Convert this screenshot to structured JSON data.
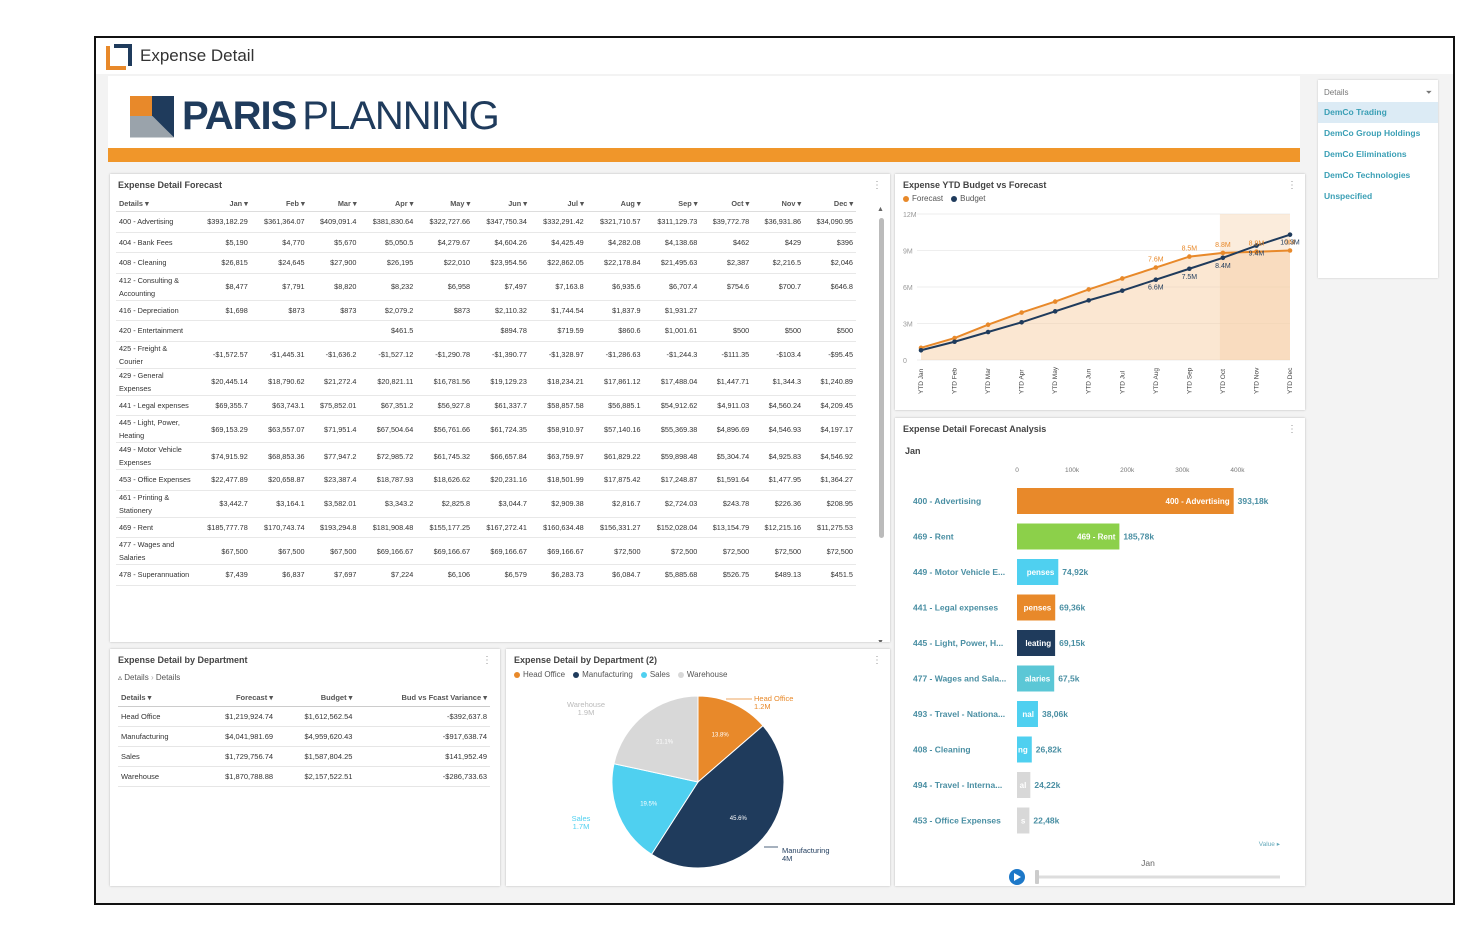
{
  "app": {
    "title": "Expense Detail"
  },
  "brand": {
    "bold": "PARIS",
    "light": "PLANNING"
  },
  "colors": {
    "orange": "#e8892a",
    "navy": "#1f3b5c",
    "cyan": "#4fd0f0",
    "lightgray": "#d8d8d8",
    "green": "#8cd04a",
    "teal": "#5bc7d6"
  },
  "forecast_table": {
    "title": "Expense Detail Forecast",
    "columns": [
      "Details",
      "Jan",
      "Feb",
      "Mar",
      "Apr",
      "May",
      "Jun",
      "Jul",
      "Aug",
      "Sep",
      "Oct",
      "Nov",
      "Dec"
    ],
    "rows": [
      [
        "400 - Advertising",
        "$393,182.29",
        "$361,364.07",
        "$409,091.4",
        "$381,830.64",
        "$322,727.66",
        "$347,750.34",
        "$332,291.42",
        "$321,710.57",
        "$311,129.73",
        "$39,772.78",
        "$36,931.86",
        "$34,090.95"
      ],
      [
        "404 - Bank Fees",
        "$5,190",
        "$4,770",
        "$5,670",
        "$5,050.5",
        "$4,279.67",
        "$4,604.26",
        "$4,425.49",
        "$4,282.08",
        "$4,138.68",
        "$462",
        "$429",
        "$396"
      ],
      [
        "408 - Cleaning",
        "$26,815",
        "$24,645",
        "$27,900",
        "$26,195",
        "$22,010",
        "$23,954.56",
        "$22,862.05",
        "$22,178.84",
        "$21,495.63",
        "$2,387",
        "$2,216.5",
        "$2,046"
      ],
      [
        "412 - Consulting & Accounting",
        "$8,477",
        "$7,791",
        "$8,820",
        "$8,232",
        "$6,958",
        "$7,497",
        "$7,163.8",
        "$6,935.6",
        "$6,707.4",
        "$754.6",
        "$700.7",
        "$646.8"
      ],
      [
        "416 - Depreciation",
        "$1,698",
        "$873",
        "$873",
        "$2,079.2",
        "$873",
        "$2,110.32",
        "$1,744.54",
        "$1,837.9",
        "$1,931.27",
        "",
        "",
        ""
      ],
      [
        "420 - Entertainment",
        "",
        "",
        "",
        "$461.5",
        "",
        "$894.78",
        "$719.59",
        "$860.6",
        "$1,001.61",
        "$500",
        "$500",
        "$500"
      ],
      [
        "425 - Freight & Courier",
        "-$1,572.57",
        "-$1,445.31",
        "-$1,636.2",
        "-$1,527.12",
        "-$1,290.78",
        "-$1,390.77",
        "-$1,328.97",
        "-$1,286.63",
        "-$1,244.3",
        "-$111.35",
        "-$103.4",
        "-$95.45"
      ],
      [
        "429 - General Expenses",
        "$20,445.14",
        "$18,790.62",
        "$21,272.4",
        "$20,821.11",
        "$16,781.56",
        "$19,129.23",
        "$18,234.21",
        "$17,861.12",
        "$17,488.04",
        "$1,447.71",
        "$1,344.3",
        "$1,240.89"
      ],
      [
        "441 - Legal expenses",
        "$69,355.7",
        "$63,743.1",
        "$75,852.01",
        "$67,351.2",
        "$56,927.8",
        "$61,337.7",
        "$58,857.58",
        "$56,885.1",
        "$54,912.62",
        "$4,911.03",
        "$4,560.24",
        "$4,209.45"
      ],
      [
        "445 - Light, Power, Heating",
        "$69,153.29",
        "$63,557.07",
        "$71,951.4",
        "$67,504.64",
        "$56,761.66",
        "$61,724.35",
        "$58,910.97",
        "$57,140.16",
        "$55,369.38",
        "$4,896.69",
        "$4,546.93",
        "$4,197.17"
      ],
      [
        "449 - Motor Vehicle Expenses",
        "$74,915.92",
        "$68,853.36",
        "$77,947.2",
        "$72,985.72",
        "$61,745.32",
        "$66,657.84",
        "$63,759.97",
        "$61,829.22",
        "$59,898.48",
        "$5,304.74",
        "$4,925.83",
        "$4,546.92"
      ],
      [
        "453 - Office Expenses",
        "$22,477.89",
        "$20,658.87",
        "$23,387.4",
        "$18,787.93",
        "$18,626.62",
        "$20,231.16",
        "$18,501.99",
        "$17,875.42",
        "$17,248.87",
        "$1,591.64",
        "$1,477.95",
        "$1,364.27"
      ],
      [
        "461 - Printing & Stationery",
        "$3,442.7",
        "$3,164.1",
        "$3,582.01",
        "$3,343.2",
        "$2,825.8",
        "$3,044.7",
        "$2,909.38",
        "$2,816.7",
        "$2,724.03",
        "$243.78",
        "$226.36",
        "$208.95"
      ],
      [
        "469 - Rent",
        "$185,777.78",
        "$170,743.74",
        "$193,294.8",
        "$181,908.48",
        "$155,177.25",
        "$167,272.41",
        "$160,634.48",
        "$156,331.27",
        "$152,028.04",
        "$13,154.79",
        "$12,215.16",
        "$11,275.53"
      ],
      [
        "477 - Wages and Salaries",
        "$67,500",
        "$67,500",
        "$67,500",
        "$69,166.67",
        "$69,166.67",
        "$69,166.67",
        "$69,166.67",
        "$72,500",
        "$72,500",
        "$72,500",
        "$72,500",
        "$72,500"
      ],
      [
        "478 - Superannuation",
        "$7,439",
        "$6,837",
        "$7,697",
        "$7,224",
        "$6,106",
        "$6,579",
        "$6,283.73",
        "$6,084.7",
        "$5,885.68",
        "$526.75",
        "$489.13",
        "$451.5"
      ]
    ],
    "tall_rows": [
      3,
      6,
      7,
      9,
      10,
      12,
      14
    ]
  },
  "ytd_chart": {
    "title": "Expense YTD Budget vs Forecast",
    "legend": [
      "Forecast",
      "Budget"
    ]
  },
  "chart_data": [
    {
      "type": "line",
      "title": "Expense YTD Budget vs Forecast",
      "categories": [
        "YTD Jan",
        "YTD Feb",
        "YTD Mar",
        "YTD Apr",
        "YTD May",
        "YTD Jun",
        "YTD Jul",
        "YTD Aug",
        "YTD Sep",
        "YTD Oct",
        "YTD Nov",
        "YTD Dec"
      ],
      "yticks": [
        "0",
        "3M",
        "6M",
        "9M",
        "12M"
      ],
      "ylim": [
        0,
        12
      ],
      "series": [
        {
          "name": "Forecast",
          "color": "#e8892a",
          "values": [
            1.0,
            1.8,
            2.9,
            3.9,
            4.8,
            5.8,
            6.7,
            7.6,
            8.5,
            8.8,
            8.9,
            9.0
          ]
        },
        {
          "name": "Budget",
          "color": "#1f3b5c",
          "values": [
            0.8,
            1.5,
            2.3,
            3.1,
            4.0,
            4.9,
            5.7,
            6.6,
            7.5,
            8.4,
            9.4,
            10.3
          ]
        }
      ],
      "data_labels": [
        {
          "i": 7,
          "text": "7.6M",
          "series": "Forecast"
        },
        {
          "i": 7,
          "text": "6.6M",
          "series": "Budget"
        },
        {
          "i": 8,
          "text": "8.5M",
          "series": "Forecast"
        },
        {
          "i": 8,
          "text": "7.5M",
          "series": "Budget"
        },
        {
          "i": 9,
          "text": "8.8M",
          "series": "Forecast"
        },
        {
          "i": 9,
          "text": "8.4M",
          "series": "Budget"
        },
        {
          "i": 10,
          "text": "8.9M",
          "series": "Forecast"
        },
        {
          "i": 10,
          "text": "9.4M",
          "series": "Budget"
        },
        {
          "i": 11,
          "text": "9M",
          "series": "Forecast"
        },
        {
          "i": 11,
          "text": "10.3M",
          "series": "Budget"
        }
      ],
      "legend_position": "top-left"
    },
    {
      "type": "pie",
      "title": "Expense Detail by Department (2)",
      "legend_position": "top-left",
      "slices": [
        {
          "name": "Head Office",
          "value": 1.2,
          "label": "1.2M",
          "percent": "13.8%",
          "color": "#e8892a"
        },
        {
          "name": "Manufacturing",
          "value": 4,
          "label": "4M",
          "percent": "45.6%",
          "color": "#1f3b5c"
        },
        {
          "name": "Sales",
          "value": 1.7,
          "label": "1.7M",
          "percent": "19.5%",
          "color": "#4fd0f0"
        },
        {
          "name": "Warehouse",
          "value": 1.9,
          "label": "1.9M",
          "percent": "21.1%",
          "color": "#d8d8d8"
        }
      ]
    },
    {
      "type": "bar",
      "title": "Expense Detail Forecast Analysis",
      "subtitle": "Jan",
      "xticks": [
        "0",
        "100k",
        "200k",
        "300k",
        "400k"
      ],
      "xlim": [
        0,
        450
      ],
      "bars": [
        {
          "name": "400 - Advertising",
          "inner": "400 - Advertising",
          "value": 393.18,
          "label": "393,18k",
          "color": "#e8892a"
        },
        {
          "name": "469 - Rent",
          "inner": "469 - Rent",
          "value": 185.78,
          "label": "185,78k",
          "color": "#8cd04a"
        },
        {
          "name": "449 - Motor Vehicle E...",
          "inner": "penses",
          "value": 74.92,
          "label": "74,92k",
          "color": "#4fd0f0"
        },
        {
          "name": "441 - Legal expenses",
          "inner": "penses",
          "value": 69.36,
          "label": "69,36k",
          "color": "#e8892a"
        },
        {
          "name": "445 - Light, Power, H...",
          "inner": "leating",
          "value": 69.15,
          "label": "69,15k",
          "color": "#1f3b5c"
        },
        {
          "name": "477 - Wages and Sala...",
          "inner": "alaries",
          "value": 67.5,
          "label": "67,5k",
          "color": "#5bc7d6"
        },
        {
          "name": "493 - Travel - Nationa...",
          "inner": "nal",
          "value": 38.06,
          "label": "38,06k",
          "color": "#4fd0f0"
        },
        {
          "name": "408 - Cleaning",
          "inner": "ng",
          "value": 26.82,
          "label": "26,82k",
          "color": "#4fd0f0"
        },
        {
          "name": "494 - Travel - Interna...",
          "inner": "al",
          "value": 24.22,
          "label": "24,22k",
          "color": "#d8d8d8"
        },
        {
          "name": "453 - Office Expenses",
          "inner": "s",
          "value": 22.48,
          "label": "22,48k",
          "color": "#d8d8d8"
        }
      ],
      "axis_hint": "Value ▸",
      "play_label": "Jan"
    }
  ],
  "dept_table": {
    "title": "Expense Detail by Department",
    "breadcrumb": [
      "Details",
      "Details"
    ],
    "columns": [
      "Details",
      "Forecast",
      "Budget",
      "Bud vs Fcast Variance"
    ],
    "rows": [
      [
        "Head Office",
        "$1,219,924.74",
        "$1,612,562.54",
        "-$392,637.8"
      ],
      [
        "Manufacturing",
        "$4,041,981.69",
        "$4,959,620.43",
        "-$917,638.74"
      ],
      [
        "Sales",
        "$1,729,756.74",
        "$1,587,804.25",
        "$141,952.49"
      ],
      [
        "Warehouse",
        "$1,870,788.88",
        "$2,157,522.51",
        "-$286,733.63"
      ]
    ]
  },
  "pie_panel": {
    "title": "Expense Detail by Department (2)",
    "legend": [
      "Head Office",
      "Manufacturing",
      "Sales",
      "Warehouse"
    ]
  },
  "bar_panel": {
    "title": "Expense Detail Forecast Analysis",
    "subtitle": "Jan"
  },
  "slicer": {
    "header": "Details",
    "items": [
      "DemCo Trading",
      "DemCo Group Holdings",
      "DemCo Eliminations",
      "DemCo Technologies",
      "Unspecified"
    ],
    "selected": 0
  }
}
